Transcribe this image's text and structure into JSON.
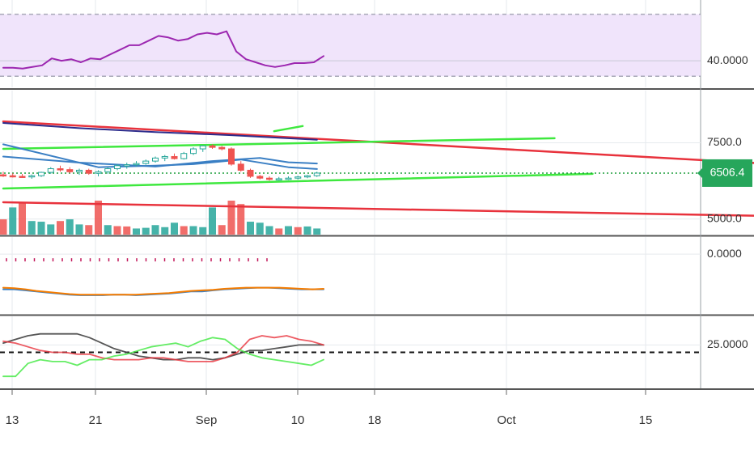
{
  "colors": {
    "rsi_band_fill": "#f0e4fb",
    "rsi_line": "#9c27b0",
    "grid": "#e6eaee",
    "separator": "#555555",
    "bull_candle": "#26a69a",
    "bear_candle": "#ef5350",
    "red_trend": "#e8323c",
    "green_trend": "#3ee83e",
    "dark_ma": "#2c2c8c",
    "blue_ma": "#3a7fc4",
    "orange_line": "#f57c00",
    "black_line": "#444444",
    "dotted_green": "#1b9e3a",
    "price_tag_bg": "#26a65b",
    "price_tag_text": "#ffffff"
  },
  "x_axis": {
    "labels": [
      "13",
      "21",
      "Sep",
      "10",
      "18",
      "Oct",
      "15"
    ]
  },
  "price_tag": {
    "label": "6506.4"
  },
  "chart_data": [
    {
      "type": "line",
      "panel": "rsi",
      "y_tick_labels": [
        "40.0000"
      ],
      "band": [
        30,
        70
      ],
      "ylim": [
        27,
        75
      ],
      "series": [
        {
          "values": [
            35.5,
            35.5,
            35,
            36,
            37,
            41.5,
            40,
            41,
            39,
            41.5,
            41,
            44,
            47,
            50,
            50,
            53,
            56,
            55,
            53,
            54,
            57,
            58,
            57,
            59,
            46,
            41,
            39,
            37,
            36,
            37,
            38.5,
            38.5,
            39,
            43
          ]
        }
      ]
    },
    {
      "type": "candlestick",
      "panel": "price",
      "y_tick_labels": [
        "7500.0",
        "5000.0"
      ],
      "last_price": 6506.4,
      "ylim": [
        4700,
        9000
      ],
      "candles": [
        {
          "open": 6450,
          "high": 6550,
          "low": 6380,
          "close": 6420
        },
        {
          "open": 6420,
          "high": 6500,
          "low": 6360,
          "close": 6400
        },
        {
          "open": 6400,
          "high": 6480,
          "low": 6350,
          "close": 6380
        },
        {
          "open": 6380,
          "high": 6460,
          "low": 6320,
          "close": 6420
        },
        {
          "open": 6420,
          "high": 6550,
          "low": 6380,
          "close": 6530
        },
        {
          "open": 6530,
          "high": 6700,
          "low": 6480,
          "close": 6650
        },
        {
          "open": 6650,
          "high": 6750,
          "low": 6550,
          "close": 6620
        },
        {
          "open": 6620,
          "high": 6700,
          "low": 6500,
          "close": 6550
        },
        {
          "open": 6550,
          "high": 6650,
          "low": 6450,
          "close": 6600
        },
        {
          "open": 6600,
          "high": 6650,
          "low": 6450,
          "close": 6500
        },
        {
          "open": 6500,
          "high": 6600,
          "low": 6400,
          "close": 6550
        },
        {
          "open": 6550,
          "high": 6700,
          "low": 6480,
          "close": 6650
        },
        {
          "open": 6650,
          "high": 6800,
          "low": 6600,
          "close": 6750
        },
        {
          "open": 6750,
          "high": 6850,
          "low": 6650,
          "close": 6780
        },
        {
          "open": 6780,
          "high": 6900,
          "low": 6720,
          "close": 6820
        },
        {
          "open": 6820,
          "high": 6950,
          "low": 6780,
          "close": 6900
        },
        {
          "open": 6900,
          "high": 7050,
          "low": 6850,
          "close": 7000
        },
        {
          "open": 7000,
          "high": 7100,
          "low": 6900,
          "close": 7050
        },
        {
          "open": 7050,
          "high": 7150,
          "low": 6950,
          "close": 6980
        },
        {
          "open": 6980,
          "high": 7200,
          "low": 6950,
          "close": 7150
        },
        {
          "open": 7150,
          "high": 7350,
          "low": 7100,
          "close": 7300
        },
        {
          "open": 7300,
          "high": 7420,
          "low": 7200,
          "close": 7400
        },
        {
          "open": 7400,
          "high": 7450,
          "low": 7300,
          "close": 7350
        },
        {
          "open": 7350,
          "high": 7400,
          "low": 7250,
          "close": 7300
        },
        {
          "open": 7300,
          "high": 7350,
          "low": 6750,
          "close": 6800
        },
        {
          "open": 6800,
          "high": 6900,
          "low": 6550,
          "close": 6600
        },
        {
          "open": 6600,
          "high": 6650,
          "low": 6350,
          "close": 6400
        },
        {
          "open": 6400,
          "high": 6450,
          "low": 6300,
          "close": 6340
        },
        {
          "open": 6340,
          "high": 6400,
          "low": 6260,
          "close": 6300
        },
        {
          "open": 6300,
          "high": 6380,
          "low": 6260,
          "close": 6320
        },
        {
          "open": 6320,
          "high": 6400,
          "low": 6280,
          "close": 6340
        },
        {
          "open": 6340,
          "high": 6420,
          "low": 6300,
          "close": 6380
        },
        {
          "open": 6380,
          "high": 6450,
          "low": 6340,
          "close": 6420
        },
        {
          "open": 6420,
          "high": 6550,
          "low": 6380,
          "close": 6506.4
        }
      ],
      "volume": {
        "vmax": 100,
        "values": [
          45,
          80,
          95,
          40,
          38,
          30,
          40,
          45,
          30,
          28,
          100,
          28,
          25,
          24,
          18,
          20,
          28,
          22,
          35,
          25,
          25,
          22,
          80,
          28,
          100,
          90,
          38,
          35,
          25,
          18,
          25,
          22,
          24,
          18
        ],
        "bull": [
          false,
          true,
          false,
          true,
          true,
          true,
          false,
          true,
          true,
          false,
          false,
          true,
          false,
          false,
          true,
          true,
          true,
          true,
          true,
          false,
          true,
          true,
          true,
          false,
          false,
          false,
          true,
          true,
          true,
          false,
          true,
          false,
          true,
          true
        ]
      },
      "trend_lines": [
        {
          "color": "red_trend",
          "points": [
            [
              0,
              8200
            ],
            [
              80,
              6820
            ]
          ]
        },
        {
          "color": "red_trend",
          "points": [
            [
              0,
              5550
            ],
            [
              80,
              5100
            ]
          ]
        },
        {
          "color": "green_trend",
          "points": [
            [
              0,
              7300
            ],
            [
              58,
              7650
            ]
          ]
        },
        {
          "color": "green_trend",
          "points": [
            [
              0,
              6000
            ],
            [
              62,
              6480
            ]
          ]
        },
        {
          "color": "green_trend",
          "points": [
            [
              28.5,
              7880
            ],
            [
              31.5,
              8050
            ]
          ]
        },
        {
          "color": "dark_ma",
          "points": [
            [
              0,
              8150
            ],
            [
              8,
              7980
            ],
            [
              16,
              7850
            ],
            [
              24,
              7750
            ],
            [
              30,
              7650
            ],
            [
              33,
              7600
            ]
          ]
        },
        {
          "color": "blue_ma",
          "points": [
            [
              0,
              7050
            ],
            [
              8,
              6850
            ],
            [
              16,
              6720
            ],
            [
              22,
              6900
            ],
            [
              27,
              7000
            ],
            [
              30,
              6860
            ],
            [
              33,
              6820
            ]
          ]
        },
        {
          "color": "blue_ma",
          "points": [
            [
              0,
              7450
            ],
            [
              10,
              6700
            ],
            [
              16,
              6750
            ],
            [
              20,
              6800
            ],
            [
              25,
              6950
            ],
            [
              30,
              6700
            ],
            [
              33,
              6640
            ]
          ]
        }
      ]
    },
    {
      "type": "line",
      "panel": "momentum",
      "y_tick_labels": [
        "0.0000"
      ],
      "ylim": [
        -100,
        20
      ],
      "markers": [
        -5,
        -6,
        -6,
        -5,
        -6,
        -5,
        -6,
        -5,
        -5,
        -6,
        -5,
        -6,
        -5,
        -6,
        -5,
        -5,
        -6,
        -5,
        -5,
        -6,
        -4,
        -3,
        -2,
        -3,
        -2,
        -3,
        -4,
        -5,
        -6
      ],
      "series": [
        {
          "color": "blue_ma",
          "values": [
            -66,
            -66,
            -68,
            -70,
            -72,
            -74,
            -76,
            -77,
            -77,
            -77,
            -76,
            -76,
            -77,
            -76,
            -75,
            -74,
            -72,
            -70,
            -70,
            -68,
            -66,
            -65,
            -64,
            -63,
            -63,
            -64,
            -65,
            -66,
            -66,
            -66
          ]
        },
        {
          "color": "orange_line",
          "values": [
            -63,
            -64,
            -66,
            -69,
            -71,
            -73,
            -75,
            -76,
            -76,
            -76,
            -76,
            -76,
            -76,
            -75,
            -74,
            -73,
            -71,
            -69,
            -68,
            -67,
            -65,
            -64,
            -63,
            -63,
            -63,
            -63,
            -64,
            -65,
            -66,
            -65
          ]
        }
      ]
    },
    {
      "type": "line",
      "panel": "dmi",
      "y_tick_labels": [
        "25.0000"
      ],
      "reference_line": 21,
      "ylim": [
        5,
        37
      ],
      "series": [
        {
          "color": "black_line",
          "values": [
            26,
            28,
            30,
            31,
            31,
            31,
            31,
            29,
            26,
            23,
            21,
            19,
            18,
            17,
            17,
            18,
            18,
            17,
            18,
            20,
            22,
            22,
            23,
            24,
            25,
            25,
            25
          ]
        },
        {
          "color": "red_trend",
          "values": [
            27,
            26,
            24,
            22,
            21,
            21,
            20,
            20,
            18,
            17,
            17,
            17,
            18,
            18,
            17,
            16,
            16,
            16,
            18,
            21,
            28,
            30,
            29,
            30,
            28,
            27,
            25
          ]
        },
        {
          "color": "green_trend",
          "values": [
            8,
            8,
            15,
            17,
            16,
            16,
            14,
            17,
            17,
            19,
            20,
            22,
            24,
            25,
            26,
            24,
            27,
            29,
            28,
            23,
            20,
            18,
            17,
            16,
            15,
            14,
            17
          ]
        }
      ]
    }
  ]
}
